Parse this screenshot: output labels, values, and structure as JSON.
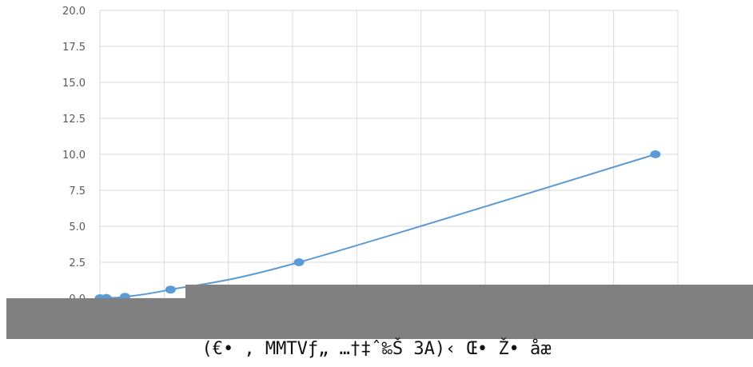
{
  "chart_data": {
    "type": "scatter",
    "title": "",
    "xlabel": "(€• , MMTVƒ„ …†‡ˆ‰Š 3A)‹ Œ• Ž• åæ",
    "ylabel": "",
    "ylim": [
      0,
      20
    ],
    "xlim": [
      0,
      9
    ],
    "yticks": [
      "0.0",
      "2.5",
      "5.0",
      "7.5",
      "10.0",
      "12.5",
      "15.0",
      "17.5",
      "20.0"
    ],
    "grid": true,
    "series": [
      {
        "x": [
          0.0,
          0.1,
          0.39,
          1.1,
          3.1,
          8.65
        ],
        "values": [
          0.0,
          0.02,
          0.1,
          0.6,
          2.5,
          10.0
        ]
      }
    ],
    "obscured_region_color": "#808080",
    "colors": {
      "line": "#5b9bd5",
      "marker": "#5b9bd5",
      "grid": "#d9d9d9",
      "label": "#595959"
    }
  }
}
